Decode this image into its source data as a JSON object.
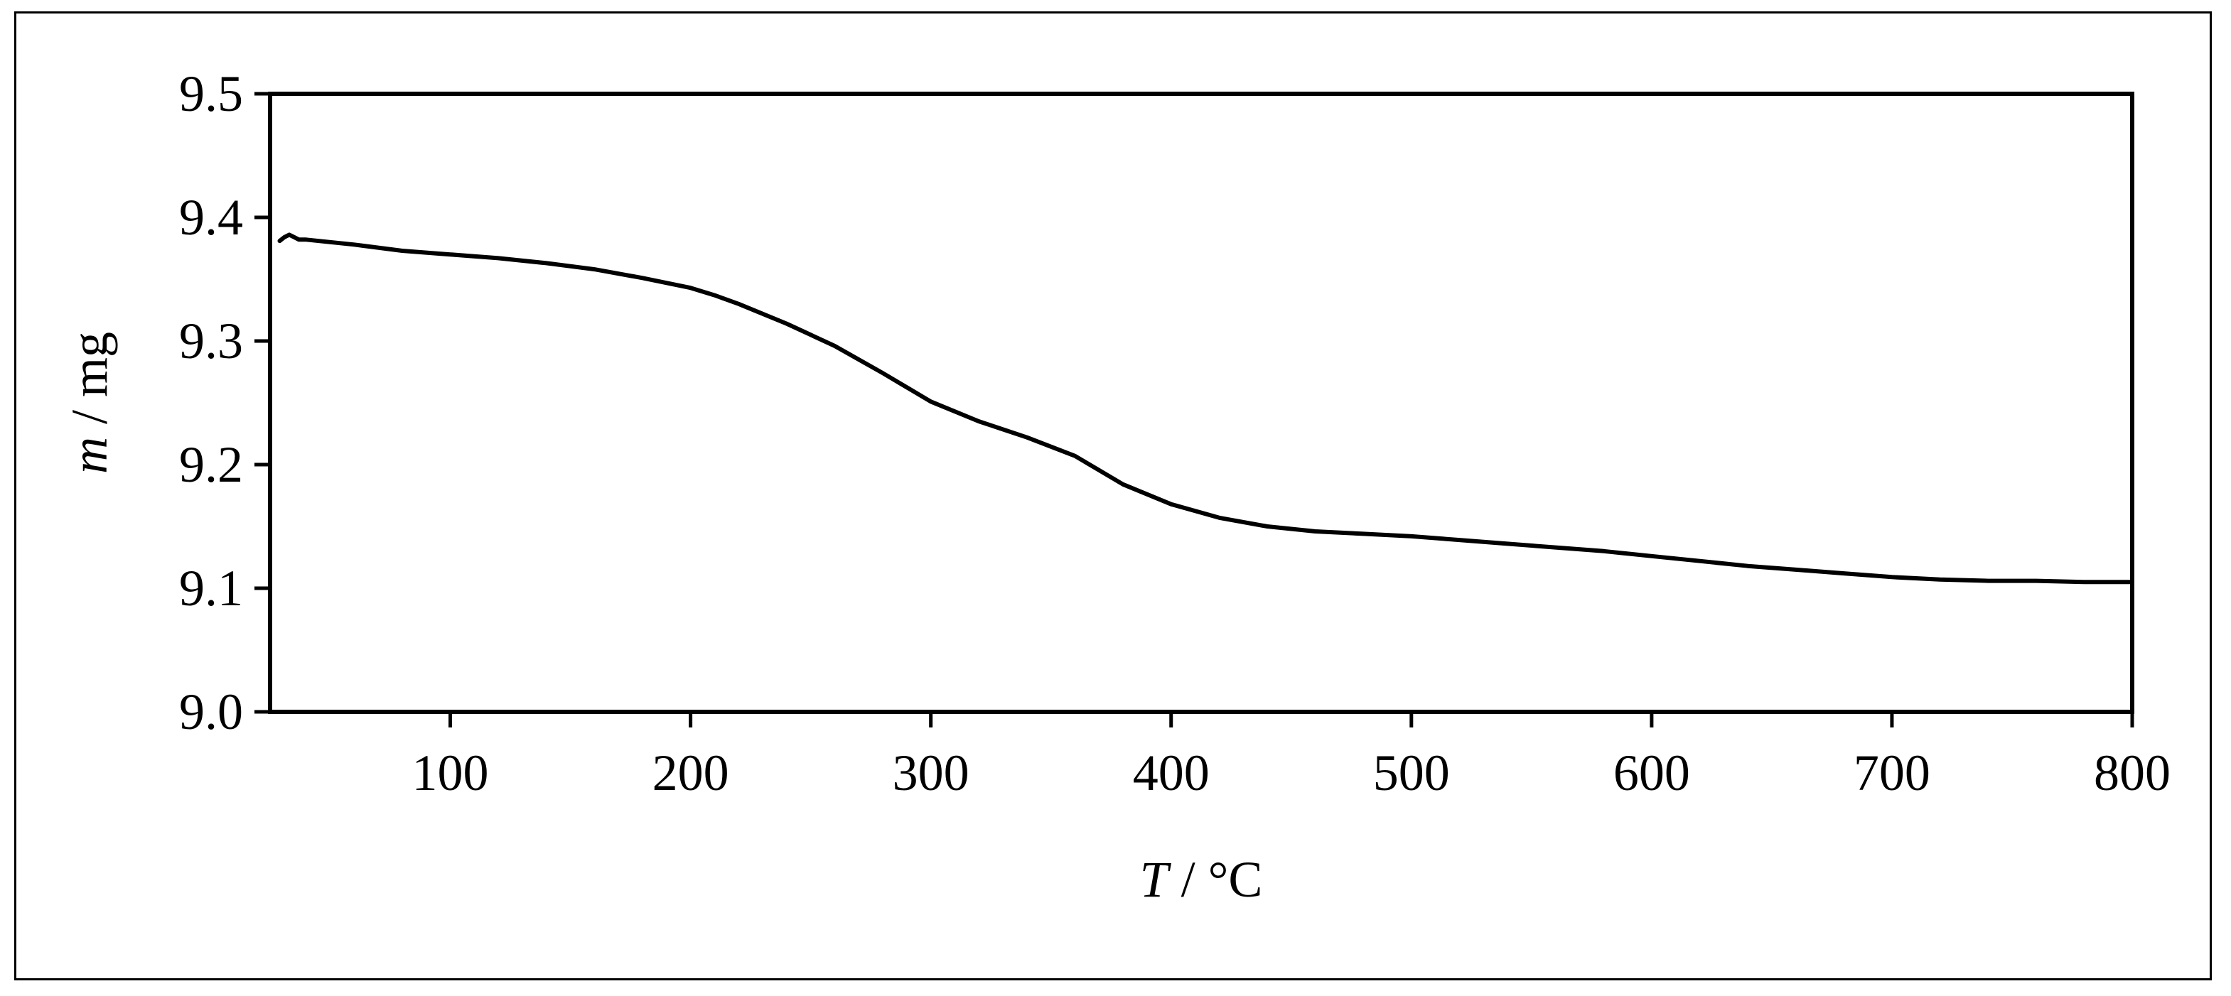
{
  "chart_data": {
    "type": "line",
    "title": "",
    "xlabel_italic": "T",
    "xlabel_rest": " / °C",
    "ylabel_italic": "m",
    "ylabel_rest": " / mg",
    "xlim": [
      25,
      800
    ],
    "ylim": [
      9.0,
      9.5
    ],
    "x_ticks": [
      100,
      200,
      300,
      400,
      500,
      600,
      700,
      800
    ],
    "x_tick_labels": [
      "100",
      "200",
      "300",
      "400",
      "500",
      "600",
      "700",
      "800"
    ],
    "y_ticks": [
      9.0,
      9.1,
      9.2,
      9.3,
      9.4,
      9.5
    ],
    "y_tick_labels": [
      "9.0",
      "9.1",
      "9.2",
      "9.3",
      "9.4",
      "9.5"
    ],
    "grid": false,
    "legend": "none",
    "line_color": "#000000",
    "series": [
      {
        "x": [
          29,
          31,
          33,
          35,
          37,
          40,
          50,
          60,
          80,
          100,
          120,
          140,
          160,
          180,
          200,
          210,
          220,
          240,
          260,
          280,
          300,
          320,
          340,
          360,
          380,
          400,
          420,
          440,
          460,
          480,
          500,
          520,
          540,
          560,
          580,
          600,
          620,
          640,
          660,
          680,
          700,
          720,
          740,
          760,
          780,
          800
        ],
        "y": [
          9.381,
          9.384,
          9.386,
          9.384,
          9.382,
          9.382,
          9.38,
          9.378,
          9.373,
          9.37,
          9.367,
          9.363,
          9.358,
          9.351,
          9.343,
          9.337,
          9.33,
          9.314,
          9.296,
          9.274,
          9.251,
          9.235,
          9.222,
          9.207,
          9.184,
          9.168,
          9.157,
          9.15,
          9.146,
          9.144,
          9.142,
          9.139,
          9.136,
          9.133,
          9.13,
          9.126,
          9.122,
          9.118,
          9.115,
          9.112,
          9.109,
          9.107,
          9.106,
          9.106,
          9.105,
          9.105
        ]
      }
    ]
  }
}
